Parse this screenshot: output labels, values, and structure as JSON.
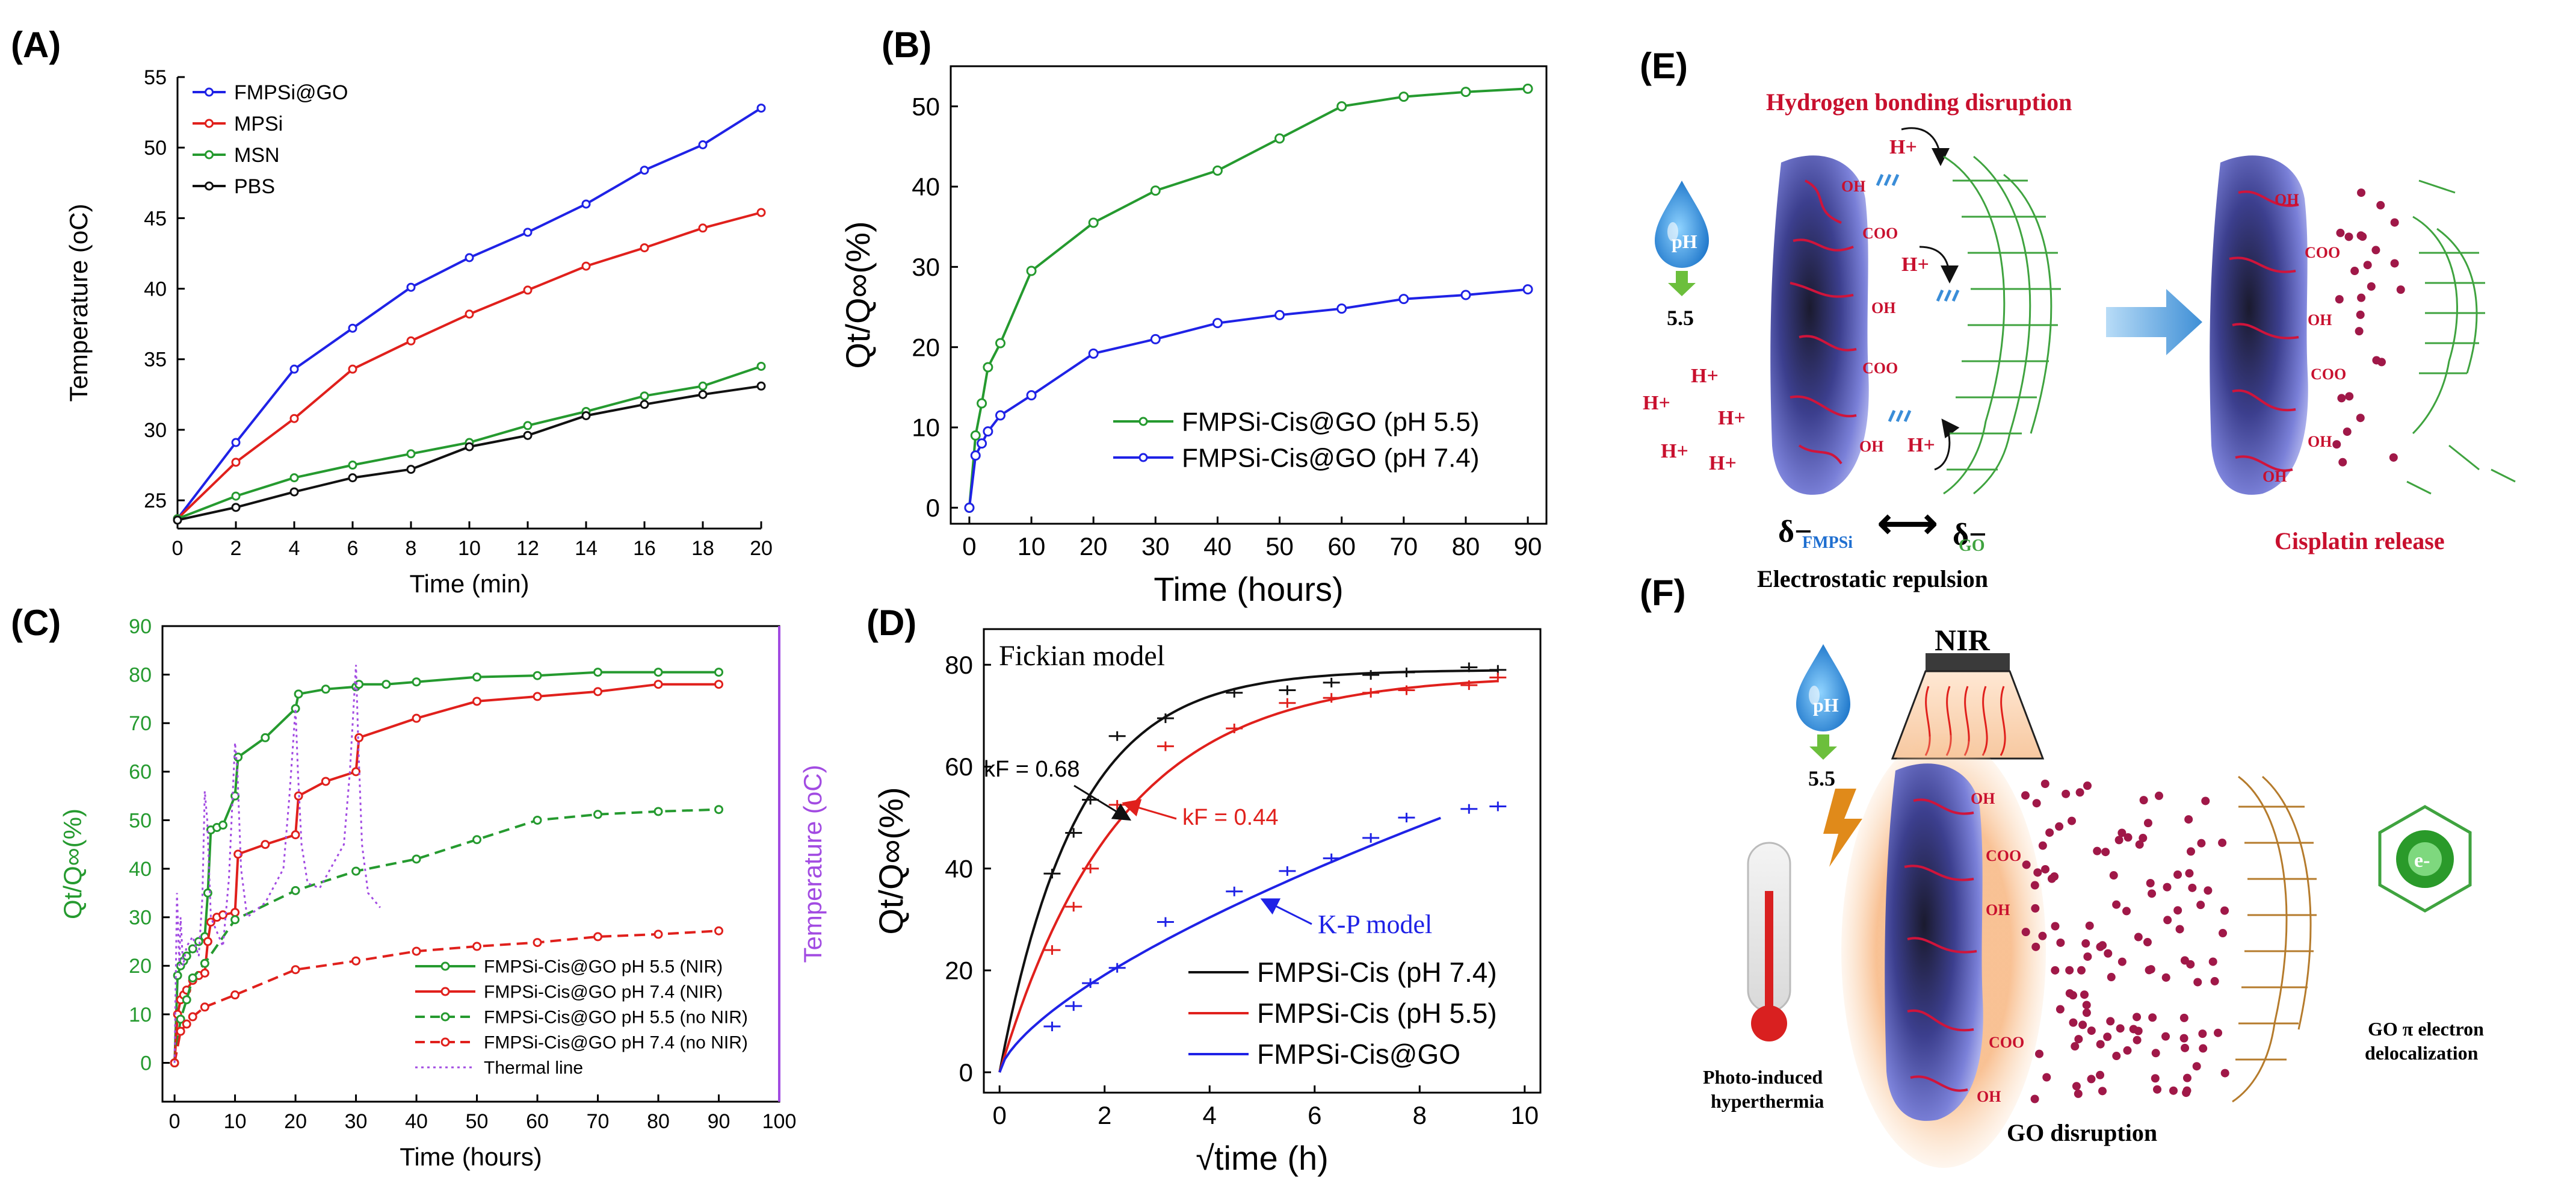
{
  "panels": {
    "A": "(A)",
    "B": "(B)",
    "C": "(C)",
    "D": "(D)",
    "E": "(E)",
    "F": "(F)"
  },
  "colors": {
    "blue": "#1f22e6",
    "red": "#e0201c",
    "green": "#259a2f",
    "black": "#111111",
    "purple": "#a24be2",
    "darkred": "#c8102e",
    "gogreen": "#3fa33f",
    "gobrown": "#b57b2c",
    "dot": "#a01848"
  },
  "chart_data": [
    {
      "id": "A",
      "type": "line",
      "xlabel": "Time (min)",
      "ylabel": "Temperature (oC)",
      "xlim": [
        0,
        20
      ],
      "ylim": [
        23,
        55
      ],
      "xticks": [
        "0",
        "2",
        "4",
        "6",
        "8",
        "10",
        "12",
        "14",
        "16",
        "18",
        "20"
      ],
      "yticks": [
        "25",
        "30",
        "35",
        "40",
        "45",
        "50",
        "55"
      ],
      "x": [
        0,
        2,
        4,
        6,
        8,
        10,
        12,
        14,
        16,
        18,
        20
      ],
      "series": [
        {
          "name": "FMPSi@GO",
          "color": "#1f22e6",
          "values": [
            23.7,
            29.1,
            34.3,
            37.2,
            40.1,
            42.2,
            44.0,
            46.0,
            48.4,
            50.2,
            52.8
          ]
        },
        {
          "name": "MPSi",
          "color": "#e0201c",
          "values": [
            23.7,
            27.7,
            30.8,
            34.3,
            36.3,
            38.2,
            39.9,
            41.6,
            42.9,
            44.3,
            45.4
          ]
        },
        {
          "name": "MSN",
          "color": "#259a2f",
          "values": [
            23.7,
            25.3,
            26.6,
            27.5,
            28.3,
            29.1,
            30.3,
            31.3,
            32.4,
            33.1,
            34.5
          ]
        },
        {
          "name": "PBS",
          "color": "#111111",
          "values": [
            23.6,
            24.5,
            25.6,
            26.6,
            27.2,
            28.8,
            29.6,
            31.0,
            31.8,
            32.5,
            33.1
          ]
        }
      ]
    },
    {
      "id": "B",
      "type": "line",
      "xlabel": "Time (hours)",
      "ylabel": "Qt/Q∞(%)",
      "xlim": [
        -3,
        93
      ],
      "ylim": [
        -2,
        55
      ],
      "xticks": [
        "0",
        "10",
        "20",
        "30",
        "40",
        "50",
        "60",
        "70",
        "80",
        "90"
      ],
      "yticks": [
        "0",
        "10",
        "20",
        "30",
        "40",
        "50"
      ],
      "series": [
        {
          "name": "FMPSi-Cis@GO (pH 5.5)",
          "color": "#259a2f",
          "x": [
            0,
            1,
            2,
            3,
            5,
            10,
            20,
            30,
            40,
            50,
            60,
            70,
            80,
            90
          ],
          "values": [
            0,
            9,
            13,
            17.5,
            20.5,
            29.5,
            35.5,
            39.5,
            42,
            46,
            50,
            51.2,
            51.8,
            52.2
          ]
        },
        {
          "name": "FMPSi-Cis@GO (pH 7.4)",
          "color": "#1f22e6",
          "x": [
            0,
            1,
            2,
            3,
            5,
            10,
            20,
            30,
            40,
            50,
            60,
            70,
            80,
            90
          ],
          "values": [
            0,
            6.5,
            8,
            9.5,
            11.5,
            14,
            19.2,
            21,
            23,
            24,
            24.8,
            26,
            26.5,
            27.2
          ]
        }
      ]
    },
    {
      "id": "C",
      "type": "line",
      "xlabel": "Time (hours)",
      "ylabel": "Qt/Q∞(%)",
      "ylabel_right": "Temperature (oC)",
      "xlim": [
        -2,
        100
      ],
      "ylim": [
        -8,
        90
      ],
      "xticks": [
        "0",
        "10",
        "20",
        "30",
        "40",
        "50",
        "60",
        "70",
        "80",
        "90",
        "100"
      ],
      "yticks": [
        "0",
        "10",
        "20",
        "30",
        "40",
        "50",
        "60",
        "70",
        "80",
        "90"
      ],
      "series": [
        {
          "name": "FMPSi-Cis@GO pH 5.5 (NIR)",
          "color": "#259a2f",
          "dash": "solid",
          "x": [
            0,
            0.5,
            1,
            1.5,
            2,
            3,
            4,
            5,
            5.5,
            6,
            7,
            8,
            10,
            10.5,
            15,
            20,
            20.5,
            25,
            30,
            30.5,
            35,
            40,
            50,
            60,
            70,
            80,
            90
          ],
          "values": [
            0,
            18,
            20,
            21,
            22,
            23.5,
            25,
            26,
            35,
            48,
            48.5,
            49,
            55,
            63,
            67,
            73,
            76,
            77,
            77.5,
            78,
            78,
            78.5,
            79.5,
            79.8,
            80.5,
            80.5,
            80.5
          ]
        },
        {
          "name": "FMPSi-Cis@GO pH 7.4 (NIR)",
          "color": "#e0201c",
          "dash": "solid",
          "x": [
            0,
            0.5,
            1,
            1.5,
            2,
            3,
            4,
            5,
            5.5,
            6,
            7,
            8,
            10,
            10.5,
            15,
            20,
            20.5,
            25,
            30,
            30.5,
            40,
            50,
            60,
            70,
            80,
            90
          ],
          "values": [
            0,
            10,
            13,
            14,
            15,
            17,
            18,
            18.5,
            25,
            29,
            30,
            30.5,
            31,
            43,
            45,
            47,
            55,
            58,
            60,
            67,
            71,
            74.5,
            75.5,
            76.5,
            78,
            78
          ]
        },
        {
          "name": "FMPSi-Cis@GO pH 5.5 (no NIR)",
          "color": "#259a2f",
          "dash": "dashed",
          "x": [
            0,
            1,
            2,
            3,
            5,
            10,
            20,
            30,
            40,
            50,
            60,
            70,
            80,
            90
          ],
          "values": [
            0,
            9,
            13,
            17.5,
            20.5,
            29.5,
            35.5,
            39.5,
            42,
            46,
            50,
            51.2,
            51.8,
            52.2
          ]
        },
        {
          "name": "FMPSi-Cis@GO pH 7.4 (no NIR)",
          "color": "#e0201c",
          "dash": "dashed",
          "x": [
            0,
            1,
            2,
            3,
            5,
            10,
            20,
            30,
            40,
            50,
            60,
            70,
            80,
            90
          ],
          "values": [
            0,
            6.5,
            8,
            9.5,
            11.5,
            14,
            19.2,
            21,
            23,
            24,
            24.8,
            26,
            26.5,
            27.2
          ]
        },
        {
          "name": "Thermal line",
          "color": "#a24be2",
          "dash": "dotted",
          "x": [
            0,
            0.4,
            0.8,
            1,
            1.4,
            2,
            3,
            4,
            4.6,
            5,
            5.4,
            6,
            8,
            9,
            10,
            10.4,
            11,
            12,
            15,
            18,
            19,
            20,
            20.4,
            21,
            22,
            24,
            28,
            29,
            30,
            30.4,
            31,
            32,
            34
          ],
          "values": [
            0,
            35,
            20,
            30,
            20,
            24,
            26,
            22,
            34,
            56,
            50,
            30,
            24,
            38,
            66,
            60,
            40,
            30,
            33,
            40,
            55,
            73,
            60,
            45,
            37,
            36,
            45,
            60,
            82,
            65,
            45,
            35,
            32
          ]
        }
      ]
    },
    {
      "id": "D",
      "type": "line",
      "xlabel": "√time (h)",
      "ylabel": "Qt/Q∞(%)",
      "xlim": [
        -0.3,
        10.3
      ],
      "ylim": [
        -4,
        87
      ],
      "xticks": [
        "0",
        "2",
        "4",
        "6",
        "8",
        "10"
      ],
      "yticks": [
        "0",
        "20",
        "40",
        "60",
        "80"
      ],
      "series": [
        {
          "name": "FMPSi-Cis (pH 7.4)",
          "color": "#111111",
          "x": [
            1,
            1.41,
            1.73,
            2.24,
            3.16,
            4.47,
            5.48,
            6.32,
            7.07,
            7.75,
            8.94,
            9.49
          ],
          "values": [
            39,
            47,
            53.5,
            66,
            69.5,
            74.5,
            75,
            76.5,
            78,
            78.5,
            79.5,
            79
          ]
        },
        {
          "name": "FMPSi-Cis (pH 5.5)",
          "color": "#e0201c",
          "x": [
            1,
            1.41,
            1.73,
            2.24,
            3.16,
            4.47,
            5.48,
            6.32,
            7.07,
            7.75,
            8.94,
            9.49
          ],
          "values": [
            24,
            32.5,
            40,
            52.5,
            64,
            67.5,
            72.5,
            73.5,
            74.5,
            75,
            76,
            77.5
          ]
        },
        {
          "name": "FMPSi-Cis@GO",
          "color": "#1f22e6",
          "x": [
            1,
            1.41,
            1.73,
            2.24,
            3.16,
            4.47,
            5.48,
            6.32,
            7.07,
            7.75,
            8.94,
            9.49
          ],
          "values": [
            9,
            13,
            17.5,
            20.5,
            29.5,
            35.5,
            39.5,
            42,
            46,
            50,
            51.7,
            52.2
          ]
        }
      ],
      "annotations": {
        "title": "Fickian model",
        "kf1": "kF = 0.68",
        "kf2": "kF = 0.44",
        "kp": "K-P model"
      }
    }
  ],
  "panelE": {
    "title": "Hydrogen bonding disruption",
    "ph": "pH",
    "ph_value": "5.5",
    "hplus": "H+",
    "oh": "OH",
    "coo": "COO",
    "delta_fmpsi": "δ−",
    "sub_fmpsi": "FMPSi",
    "delta_go": "δ−",
    "sub_go": "GO",
    "arrow": "⟷",
    "electrostatic": "Electrostatic repulsion",
    "release": "Cisplatin release"
  },
  "panelF": {
    "ph": "pH",
    "ph_value": "5.5",
    "nir": "NIR",
    "thermo_label_1": "Photo-induced",
    "thermo_label_2": "hyperthermia",
    "go_disruption": "GO disruption",
    "electron": "e-",
    "deloc_1": "GO π electron",
    "deloc_2": "delocalization",
    "oh": "OH",
    "coo": "COO"
  }
}
